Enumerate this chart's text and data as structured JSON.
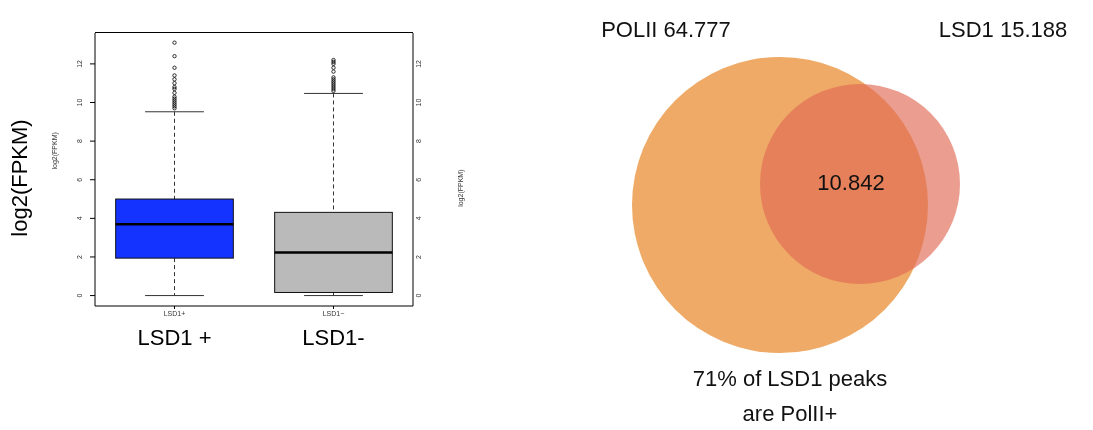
{
  "chart_data": [
    {
      "type": "box",
      "ylabel": "log2(FPKM)",
      "y2label": "log2(FPKM)",
      "categories": [
        "LSD1+",
        "LSD1−"
      ],
      "colors": [
        "#1433ff",
        "#bababa"
      ],
      "boxes": [
        {
          "low": 0,
          "q1": 1.94,
          "median": 3.69,
          "q3": 5.0,
          "high": 9.52,
          "outliers": [
            9.7,
            9.8,
            9.9,
            10.0,
            10.1,
            10.2,
            10.3,
            10.5,
            10.7,
            10.8,
            11.0,
            11.2,
            11.4,
            11.8,
            12.4,
            13.1
          ]
        },
        {
          "low": 0,
          "q1": 0.16,
          "median": 2.23,
          "q3": 4.31,
          "high": 10.47,
          "outliers": [
            10.6,
            10.7,
            10.8,
            10.9,
            11.0,
            11.1,
            11.2,
            11.3,
            11.6,
            11.8,
            12.0,
            12.1,
            12.2
          ]
        }
      ],
      "ylim": [
        -0.54,
        13.6
      ],
      "yticks": [
        0,
        2,
        4,
        6,
        8,
        10,
        12
      ],
      "y2lim": [
        -0.54,
        13.6
      ],
      "y2ticks": [
        0,
        2,
        4,
        6,
        8,
        10,
        12
      ],
      "annotations": [
        "log2(FPKM)",
        "LSD1 +",
        "LSD1-"
      ]
    },
    {
      "type": "other",
      "annotations": [
        "POLII 64.777",
        "LSD1 15.188",
        "10.842",
        "71% of LSD1 peaks are PolII+"
      ]
    }
  ]
}
